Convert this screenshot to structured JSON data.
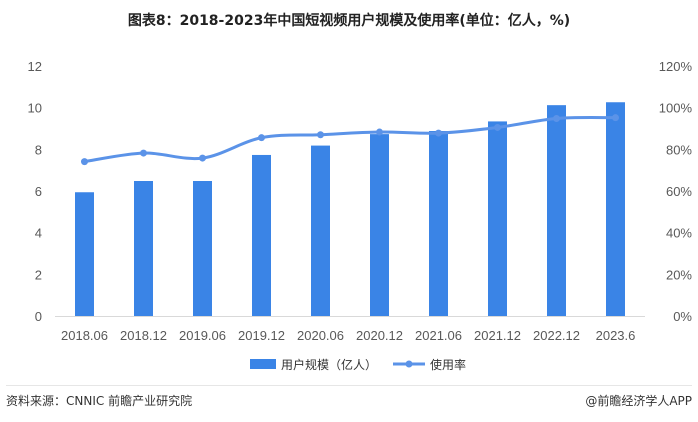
{
  "chart_data": {
    "type": "bar+line",
    "title": "图表8：2018-2023年中国短视频用户规模及使用率(单位：亿人，%)",
    "categories": [
      "2018.06",
      "2018.12",
      "2019.06",
      "2019.12",
      "2020.06",
      "2020.12",
      "2021.06",
      "2021.12",
      "2022.12",
      "2023.6"
    ],
    "series": [
      {
        "name": "用户规模（亿人）",
        "type": "bar",
        "axis": "left",
        "color": "#3a84e6",
        "values": [
          5.94,
          6.48,
          6.48,
          7.73,
          8.18,
          8.73,
          8.88,
          9.34,
          10.12,
          10.26
        ]
      },
      {
        "name": "使用率",
        "type": "line",
        "axis": "right",
        "color": "#5b93e8",
        "values": [
          74.1,
          78.2,
          75.8,
          85.6,
          87.0,
          88.3,
          87.8,
          90.5,
          94.8,
          95.2
        ]
      }
    ],
    "left_axis": {
      "min": 0,
      "max": 12,
      "ticks": [
        "0",
        "2",
        "4",
        "6",
        "8",
        "10",
        "12"
      ]
    },
    "right_axis": {
      "min": 0,
      "max": 120,
      "ticks": [
        "0%",
        "20%",
        "40%",
        "60%",
        "80%",
        "100%",
        "120%"
      ]
    },
    "legend_position": "bottom",
    "grid": false
  },
  "footer": {
    "source": "资料来源：CNNIC 前瞻产业研究院",
    "credit": "@前瞻经济学人APP"
  }
}
